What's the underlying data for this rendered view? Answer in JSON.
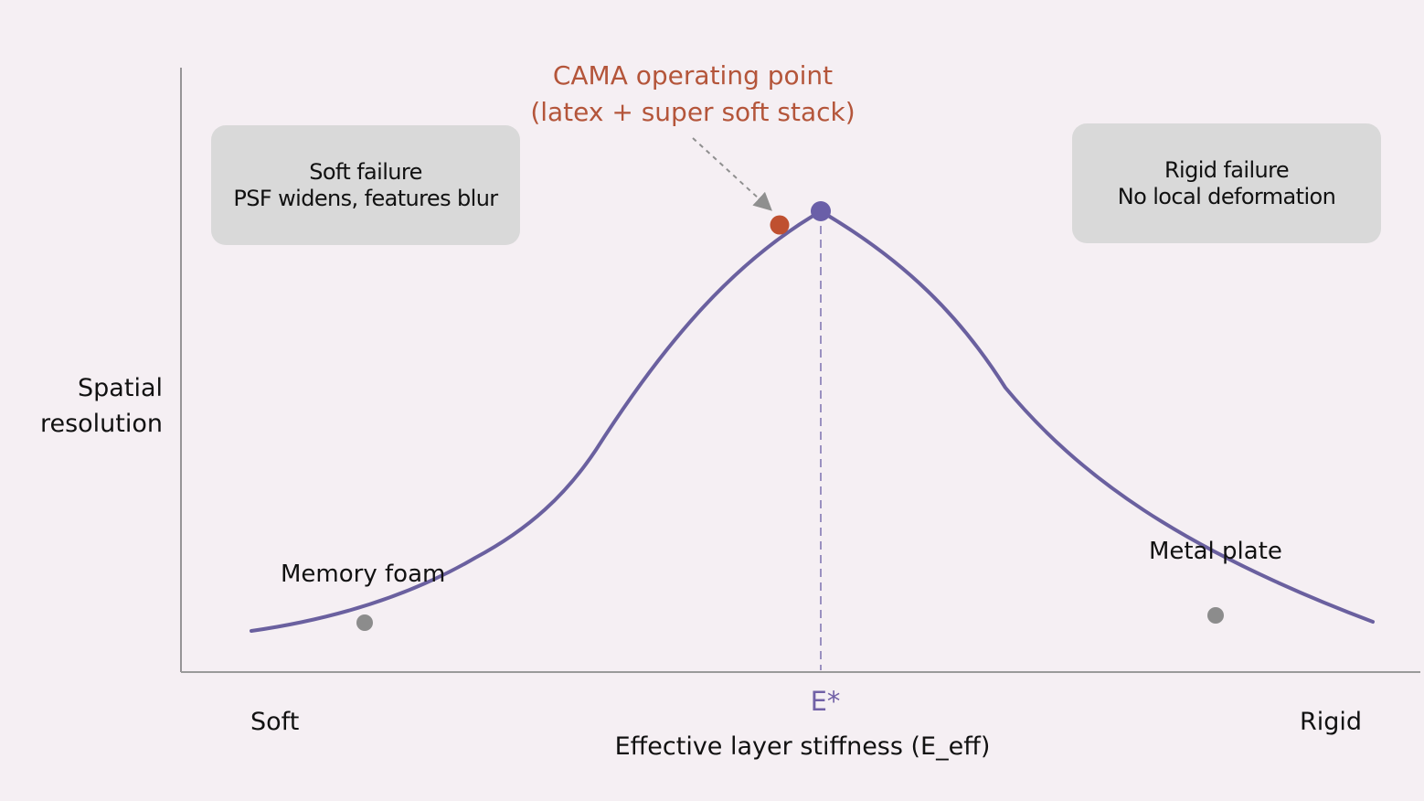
{
  "y_axis": {
    "label_line1": "Spatial",
    "label_line2": "resolution"
  },
  "x_axis": {
    "title": "Effective layer stiffness (E_eff)",
    "low_label": "Soft",
    "high_label": "Rigid",
    "optimum_label": "E*"
  },
  "callout": {
    "line1": "CAMA operating point",
    "line2": "(latex + super soft stack)"
  },
  "regions": {
    "soft": {
      "line1": "Soft failure",
      "line2": "PSF widens, features blur"
    },
    "rigid": {
      "line1": "Rigid failure",
      "line2": "No local deformation"
    }
  },
  "points": {
    "memory_foam": "Memory foam",
    "metal_plate": "Metal plate"
  },
  "colors": {
    "curve": "#6a609f",
    "peak": "#6a5fa8",
    "cama": "#bf5030",
    "reference": "#8c8c8c",
    "axis": "#8a8a8a",
    "background": "#f5eff3",
    "box": "#d9d9d9"
  }
}
